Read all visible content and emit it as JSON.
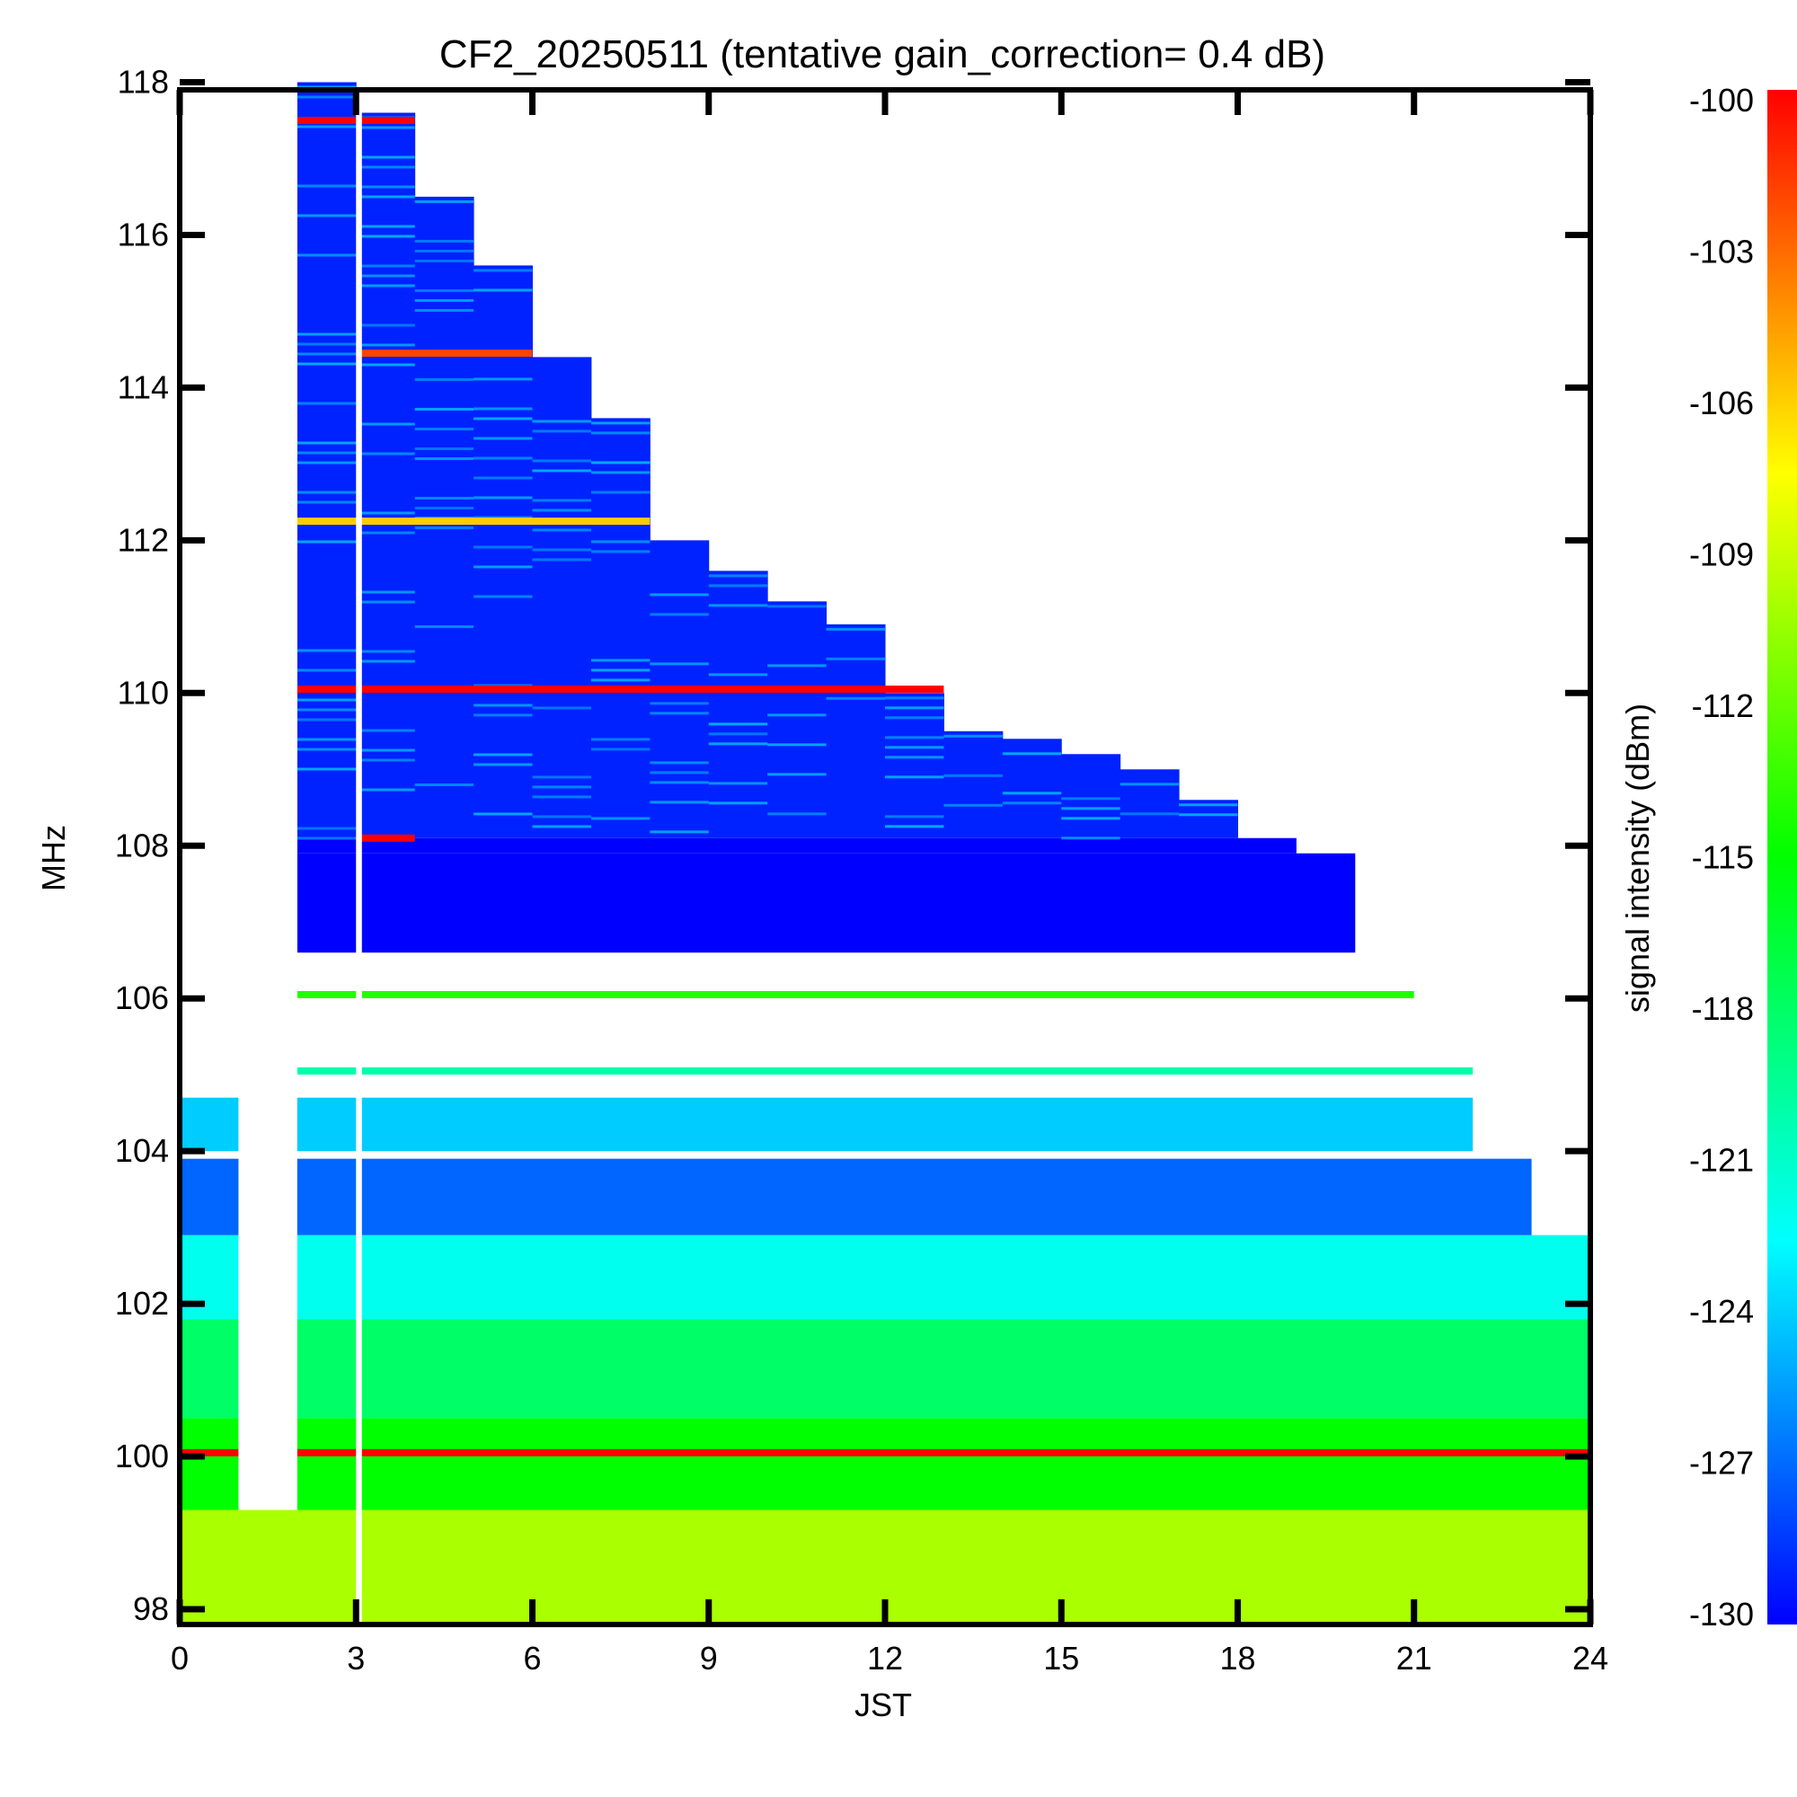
{
  "chart_data": {
    "type": "heatmap",
    "title": "CF2_20250511 (tentative gain_correction=  0.4 dB)",
    "xlabel": "JST",
    "ylabel": "MHz",
    "colorbar_label": "signal intensity (dBm)",
    "xlim": [
      0,
      24
    ],
    "ylim": [
      97.8,
      117.9
    ],
    "x_ticks": [
      0,
      3,
      6,
      9,
      12,
      15,
      18,
      21,
      24
    ],
    "y_ticks": [
      98,
      100,
      102,
      104,
      106,
      108,
      110,
      112,
      114,
      116,
      118
    ],
    "colorbar_range": [
      -130,
      -100
    ],
    "colorbar_ticks": [
      -100,
      -103,
      -106,
      -109,
      -112,
      -115,
      -118,
      -121,
      -124,
      -127,
      -130
    ],
    "colormap": "rainbow (blue = -130 dBm, red = -100 dBm)",
    "coverage_blocks": [
      {
        "x": [
          2,
          3
        ],
        "y": [
          108.1,
          118.0
        ]
      },
      {
        "x": [
          3,
          4
        ],
        "y": [
          108.1,
          117.6
        ]
      },
      {
        "x": [
          4,
          5
        ],
        "y": [
          108.1,
          116.5
        ]
      },
      {
        "x": [
          5,
          6
        ],
        "y": [
          108.1,
          115.6
        ]
      },
      {
        "x": [
          6,
          7
        ],
        "y": [
          108.1,
          114.4
        ]
      },
      {
        "x": [
          7,
          8
        ],
        "y": [
          108.1,
          113.6
        ]
      },
      {
        "x": [
          8,
          9
        ],
        "y": [
          108.1,
          112.0
        ]
      },
      {
        "x": [
          9,
          10
        ],
        "y": [
          108.1,
          111.6
        ]
      },
      {
        "x": [
          10,
          11
        ],
        "y": [
          108.1,
          111.2
        ]
      },
      {
        "x": [
          11,
          12
        ],
        "y": [
          108.1,
          110.9
        ]
      },
      {
        "x": [
          12,
          13
        ],
        "y": [
          108.1,
          110.0
        ]
      },
      {
        "x": [
          13,
          14
        ],
        "y": [
          108.1,
          109.5
        ]
      },
      {
        "x": [
          14,
          15
        ],
        "y": [
          108.1,
          109.4
        ]
      },
      {
        "x": [
          15,
          16
        ],
        "y": [
          108.1,
          109.2
        ]
      },
      {
        "x": [
          16,
          17
        ],
        "y": [
          108.1,
          109.0
        ]
      },
      {
        "x": [
          17,
          18
        ],
        "y": [
          108.1,
          108.6
        ]
      }
    ],
    "lower_bands": [
      {
        "y": [
          97.8,
          99.3
        ],
        "x": [
          0,
          24
        ],
        "dbm": -110
      },
      {
        "y": [
          99.3,
          100.5
        ],
        "x": [
          0,
          24
        ],
        "dbm": -115
      },
      {
        "y": [
          100.5,
          101.8
        ],
        "x": [
          0,
          24
        ],
        "dbm": -118
      },
      {
        "y": [
          101.8,
          102.9
        ],
        "x": [
          0,
          24
        ],
        "dbm": -122
      },
      {
        "y": [
          102.9,
          103.9
        ],
        "x": [
          0,
          23
        ],
        "dbm": -127
      },
      {
        "y": [
          104.0,
          104.7
        ],
        "x": [
          0,
          22
        ],
        "dbm": -124
      },
      {
        "y": [
          106.6,
          107.9
        ],
        "x": [
          2,
          20
        ],
        "dbm": -130
      },
      {
        "y": [
          107.9,
          108.1
        ],
        "x": [
          2,
          19
        ],
        "dbm": -130
      }
    ],
    "strong_lines": [
      {
        "mhz": 100.05,
        "x": [
          0,
          24
        ],
        "dbm": -100
      },
      {
        "mhz": 110.05,
        "x": [
          2,
          13
        ],
        "dbm": -100
      },
      {
        "mhz": 117.5,
        "x": [
          2,
          4
        ],
        "dbm": -100
      },
      {
        "mhz": 114.45,
        "x": [
          3,
          6
        ],
        "dbm": -102
      },
      {
        "mhz": 112.25,
        "x": [
          2,
          8
        ],
        "dbm": -106
      },
      {
        "mhz": 108.1,
        "x": [
          3,
          4
        ],
        "dbm": -100
      },
      {
        "mhz": 105.05,
        "x": [
          2,
          22
        ],
        "dbm": -120
      },
      {
        "mhz": 106.05,
        "x": [
          2,
          21
        ],
        "dbm": -114
      }
    ],
    "data_gaps": [
      {
        "x": [
          1,
          2
        ],
        "y": [
          99.3,
          117.9
        ]
      },
      {
        "x": [
          3.0,
          3.1
        ],
        "y": [
          97.8,
          117.9
        ]
      }
    ]
  }
}
